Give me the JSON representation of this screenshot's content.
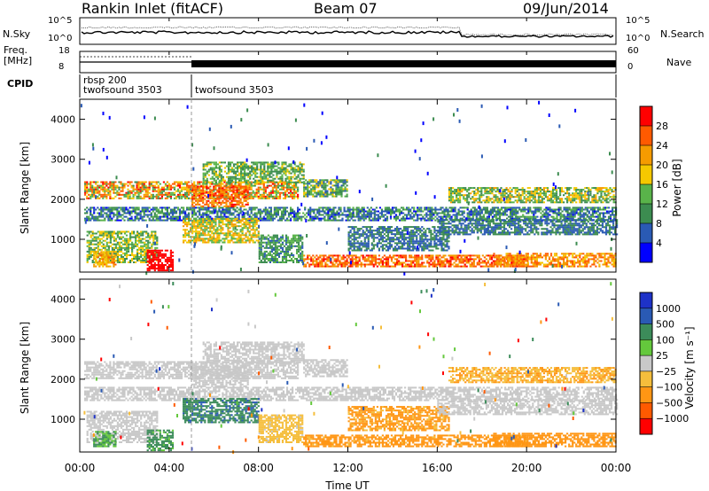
{
  "header": {
    "station": "Rankin Inlet (fitACF)",
    "beam": "Beam 07",
    "date": "09/Jun/2014"
  },
  "noise_panel": {
    "left_label": "N.Sky",
    "right_label": "N.Search",
    "left_ticks": [
      "10^5",
      "10^0"
    ],
    "right_ticks": [
      "10^5",
      "10^0"
    ]
  },
  "freq_panel": {
    "left_label_line1": "Freq.",
    "left_label_line2": "[MHz]",
    "left_ticks": [
      "18",
      "8"
    ],
    "right_label": "Nave",
    "right_ticks": [
      "60",
      "0"
    ]
  },
  "cpid_panel": {
    "label": "CPID",
    "modes": [
      {
        "line1": "rbsp 200",
        "line2": "twofsound 3503"
      },
      {
        "line1": "",
        "line2": "twofsound 3503"
      }
    ]
  },
  "colors": {
    "power_scale": [
      "#0000ff",
      "#2a5ab4",
      "#3c8c50",
      "#59b34a",
      "#f5c800",
      "#f59b00",
      "#ff5a00",
      "#ff0000"
    ],
    "velocity_scale": [
      "#ff0000",
      "#ff5a00",
      "#ff9614",
      "#f5be3c",
      "#c8c8c8",
      "#64c83c",
      "#3c8c5a",
      "#2a5ab4",
      "#1e32c8"
    ]
  },
  "chart_data": [
    {
      "type": "heatmap",
      "panel": "power",
      "ylabel": "Slant Range [km]",
      "yticks": [
        "1000",
        "2000",
        "3000",
        "4000"
      ],
      "ylim": [
        180,
        4500
      ],
      "xlim": [
        0,
        24
      ],
      "colorbar_label": "Power [dB]",
      "colorbar_ticks": [
        "4",
        "8",
        "12",
        "16",
        "20",
        "24",
        "28"
      ],
      "clim": [
        0,
        32
      ]
    },
    {
      "type": "heatmap",
      "panel": "velocity",
      "ylabel": "Slant Range [km]",
      "yticks": [
        "1000",
        "2000",
        "3000",
        "4000"
      ],
      "ylim": [
        180,
        4500
      ],
      "xlim": [
        0,
        24
      ],
      "xticks": [
        "00:00",
        "04:00",
        "08:00",
        "12:00",
        "16:00",
        "20:00",
        "00:00"
      ],
      "xlabel": "Time UT",
      "colorbar_label": "Velocity [m s⁻¹]",
      "colorbar_ticks": [
        "1000",
        "500",
        "100",
        "25",
        "−25",
        "−100",
        "−500",
        "−1000"
      ]
    }
  ]
}
